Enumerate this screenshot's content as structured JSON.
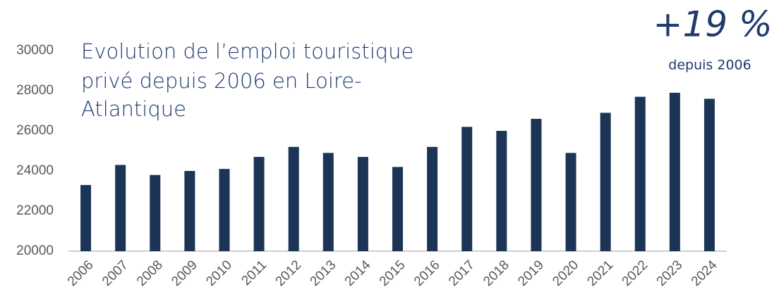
{
  "chart_data": {
    "type": "bar",
    "title": [
      "Evolution de l’emploi touristique",
      "privé depuis 2006 en Loire-",
      "Atlantique"
    ],
    "annotations": [
      "+19 %",
      "depuis 2006"
    ],
    "categories": [
      "2006",
      "2007",
      "2008",
      "2009",
      "2010",
      "2011",
      "2012",
      "2013",
      "2014",
      "2015",
      "2016",
      "2017",
      "2018",
      "2019",
      "2020",
      "2021",
      "2022",
      "2023",
      "2024"
    ],
    "values": [
      23300,
      24300,
      23800,
      24000,
      24100,
      24700,
      25200,
      24900,
      24700,
      24200,
      25200,
      26200,
      26000,
      26600,
      24900,
      26900,
      27700,
      27900,
      27600
    ],
    "color": "#1c3557",
    "ylim": [
      20000,
      30000
    ],
    "yticks": [
      20000,
      22000,
      24000,
      26000,
      28000,
      30000
    ],
    "grid": false
  }
}
